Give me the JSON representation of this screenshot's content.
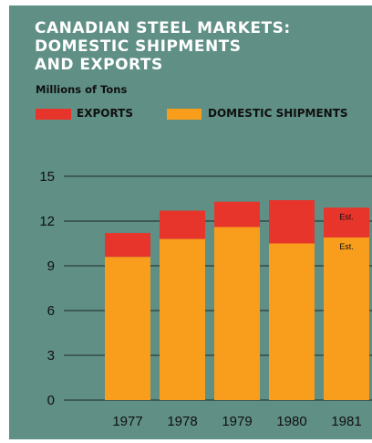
{
  "colors": {
    "background": "#5f8f85",
    "exports": "#e8352c",
    "domestic": "#f99d1c",
    "gridline": "#1c2a28",
    "text_dark": "#101010",
    "title_text": "#ffffff"
  },
  "chart_data": {
    "type": "bar",
    "stacked": true,
    "title_lines": [
      "CANADIAN STEEL MARKETS:",
      "DOMESTIC SHIPMENTS",
      "AND EXPORTS"
    ],
    "subtitle": "Millions of Tons",
    "categories": [
      "1977",
      "1978",
      "1979",
      "1980",
      "1981"
    ],
    "series": [
      {
        "name": "DOMESTIC SHIPMENTS",
        "values": [
          9.6,
          10.8,
          11.6,
          10.5,
          10.9
        ]
      },
      {
        "name": "EXPORTS",
        "values": [
          1.6,
          1.9,
          1.7,
          2.9,
          2.0
        ]
      }
    ],
    "ylim": [
      0,
      15
    ],
    "yticks": [
      "0",
      "3",
      "6",
      "9",
      "12",
      "15"
    ],
    "grid": true,
    "legend": {
      "placement": "top",
      "items": [
        "EXPORTS",
        "DOMESTIC SHIPMENTS"
      ]
    },
    "annotations": [
      {
        "category": "1981",
        "series": "EXPORTS",
        "text": "Est."
      },
      {
        "category": "1981",
        "series": "DOMESTIC SHIPMENTS",
        "text": "Est."
      }
    ]
  }
}
